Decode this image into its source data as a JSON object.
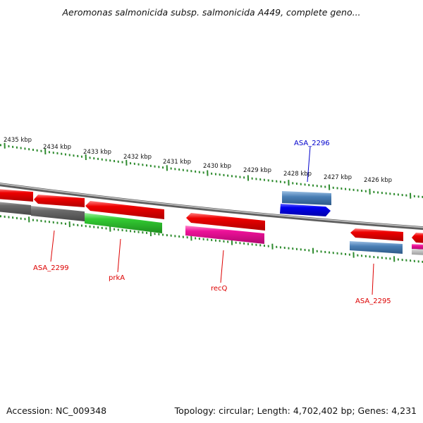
{
  "title": "Aeromonas salmonicida subsp. salmonicida A449, complete geno...",
  "footer": {
    "accession": "Accession: NC_009348",
    "stats": "Topology: circular; Length: 4,702,402 bp; Genes: 4,231"
  },
  "ticks": [
    "2435 kbp",
    "2434 kbp",
    "2433 kbp",
    "2432 kbp",
    "2431 kbp",
    "2430 kbp",
    "2429 kbp",
    "2428 kbp",
    "2427 kbp",
    "2426 kbp"
  ],
  "colors": {
    "backbone": "#8e8e8e",
    "tick": "#2e8b2e",
    "cds_red": "#ee0000",
    "gene_gray": "#707070",
    "gene_green": "#33cc33",
    "gene_pink": "#ee1199",
    "gene_steel": "#4a7fb5",
    "gene_blue": "#0000ee",
    "label_red": "#dd0000",
    "label_blue": "#0000cc"
  },
  "gene_labels": [
    {
      "name": "ASA_2299",
      "color": "label_red"
    },
    {
      "name": "prkA",
      "color": "label_red"
    },
    {
      "name": "recQ",
      "color": "label_red"
    },
    {
      "name": "ASA_2295",
      "color": "label_red"
    },
    {
      "name": "ASA_2296",
      "color": "label_blue"
    }
  ]
}
